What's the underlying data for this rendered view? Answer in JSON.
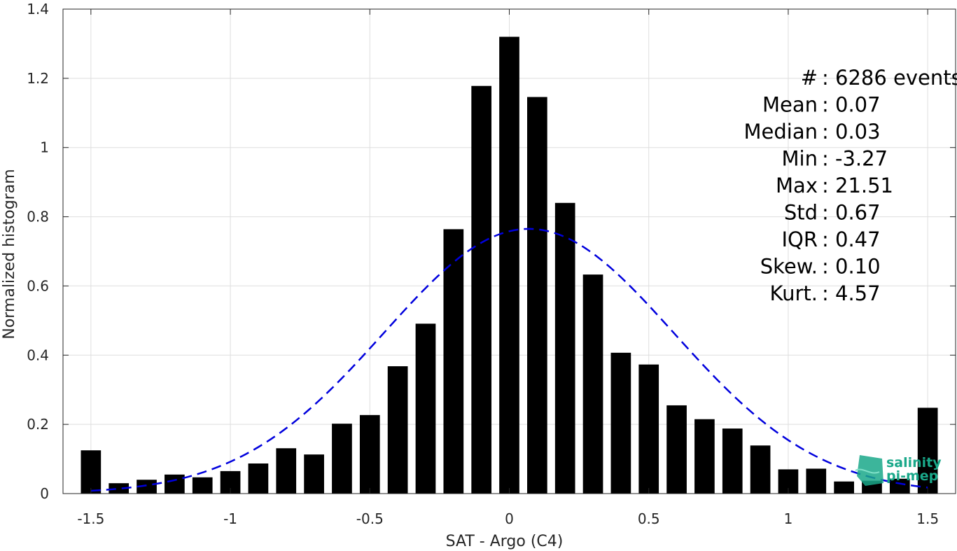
{
  "chart_data": {
    "type": "bar",
    "xlabel": "SAT - Argo (C4)",
    "ylabel": "Normalized histogram",
    "xlim": [
      -1.6,
      1.6
    ],
    "ylim": [
      0,
      1.4
    ],
    "xticks": [
      -1.5,
      -1,
      -0.5,
      0,
      0.5,
      1,
      1.5
    ],
    "xtick_labels": [
      "-1.5",
      "-1",
      "-0.5",
      "0",
      "0.5",
      "1",
      "1.5"
    ],
    "yticks": [
      0,
      0.2,
      0.4,
      0.6,
      0.8,
      1,
      1.2,
      1.4
    ],
    "ytick_labels": [
      "0",
      "0.2",
      "0.4",
      "0.6",
      "0.8",
      "1",
      "1.2",
      "1.4"
    ],
    "grid": true,
    "bar_color": "#000000",
    "bin_width": 0.1,
    "x": [
      -1.5,
      -1.4,
      -1.3,
      -1.2,
      -1.1,
      -1.0,
      -0.9,
      -0.8,
      -0.7,
      -0.6,
      -0.5,
      -0.4,
      -0.3,
      -0.2,
      -0.1,
      0.0,
      0.1,
      0.2,
      0.3,
      0.4,
      0.5,
      0.6,
      0.7,
      0.8,
      0.9,
      1.0,
      1.1,
      1.2,
      1.3,
      1.4,
      1.5
    ],
    "values": [
      0.125,
      0.03,
      0.04,
      0.055,
      0.047,
      0.065,
      0.087,
      0.131,
      0.113,
      0.202,
      0.227,
      0.368,
      0.491,
      0.764,
      1.178,
      1.32,
      1.146,
      0.84,
      0.633,
      0.407,
      0.373,
      0.255,
      0.215,
      0.188,
      0.139,
      0.07,
      0.072,
      0.035,
      0.037,
      0.043,
      0.248
    ],
    "fit_curve": {
      "type": "gaussian",
      "mean": 0.07,
      "std": 0.52,
      "peak": 0.765,
      "color": "#0000dd"
    },
    "stats": [
      {
        "label": "#  ",
        "value": "6286 events"
      },
      {
        "label": "Mean",
        "value": "0.07"
      },
      {
        "label": "Median",
        "value": "0.03"
      },
      {
        "label": "Min",
        "value": "-3.27"
      },
      {
        "label": "Max",
        "value": "21.51"
      },
      {
        "label": "Std",
        "value": "0.67"
      },
      {
        "label": "IQR",
        "value": "0.47"
      },
      {
        "label": "Skew.",
        "value": "0.10"
      },
      {
        "label": "Kurt.",
        "value": "4.57"
      }
    ]
  },
  "logo": {
    "line1": "salinity",
    "line2": "pi-mep",
    "color": "#1aa88a"
  }
}
